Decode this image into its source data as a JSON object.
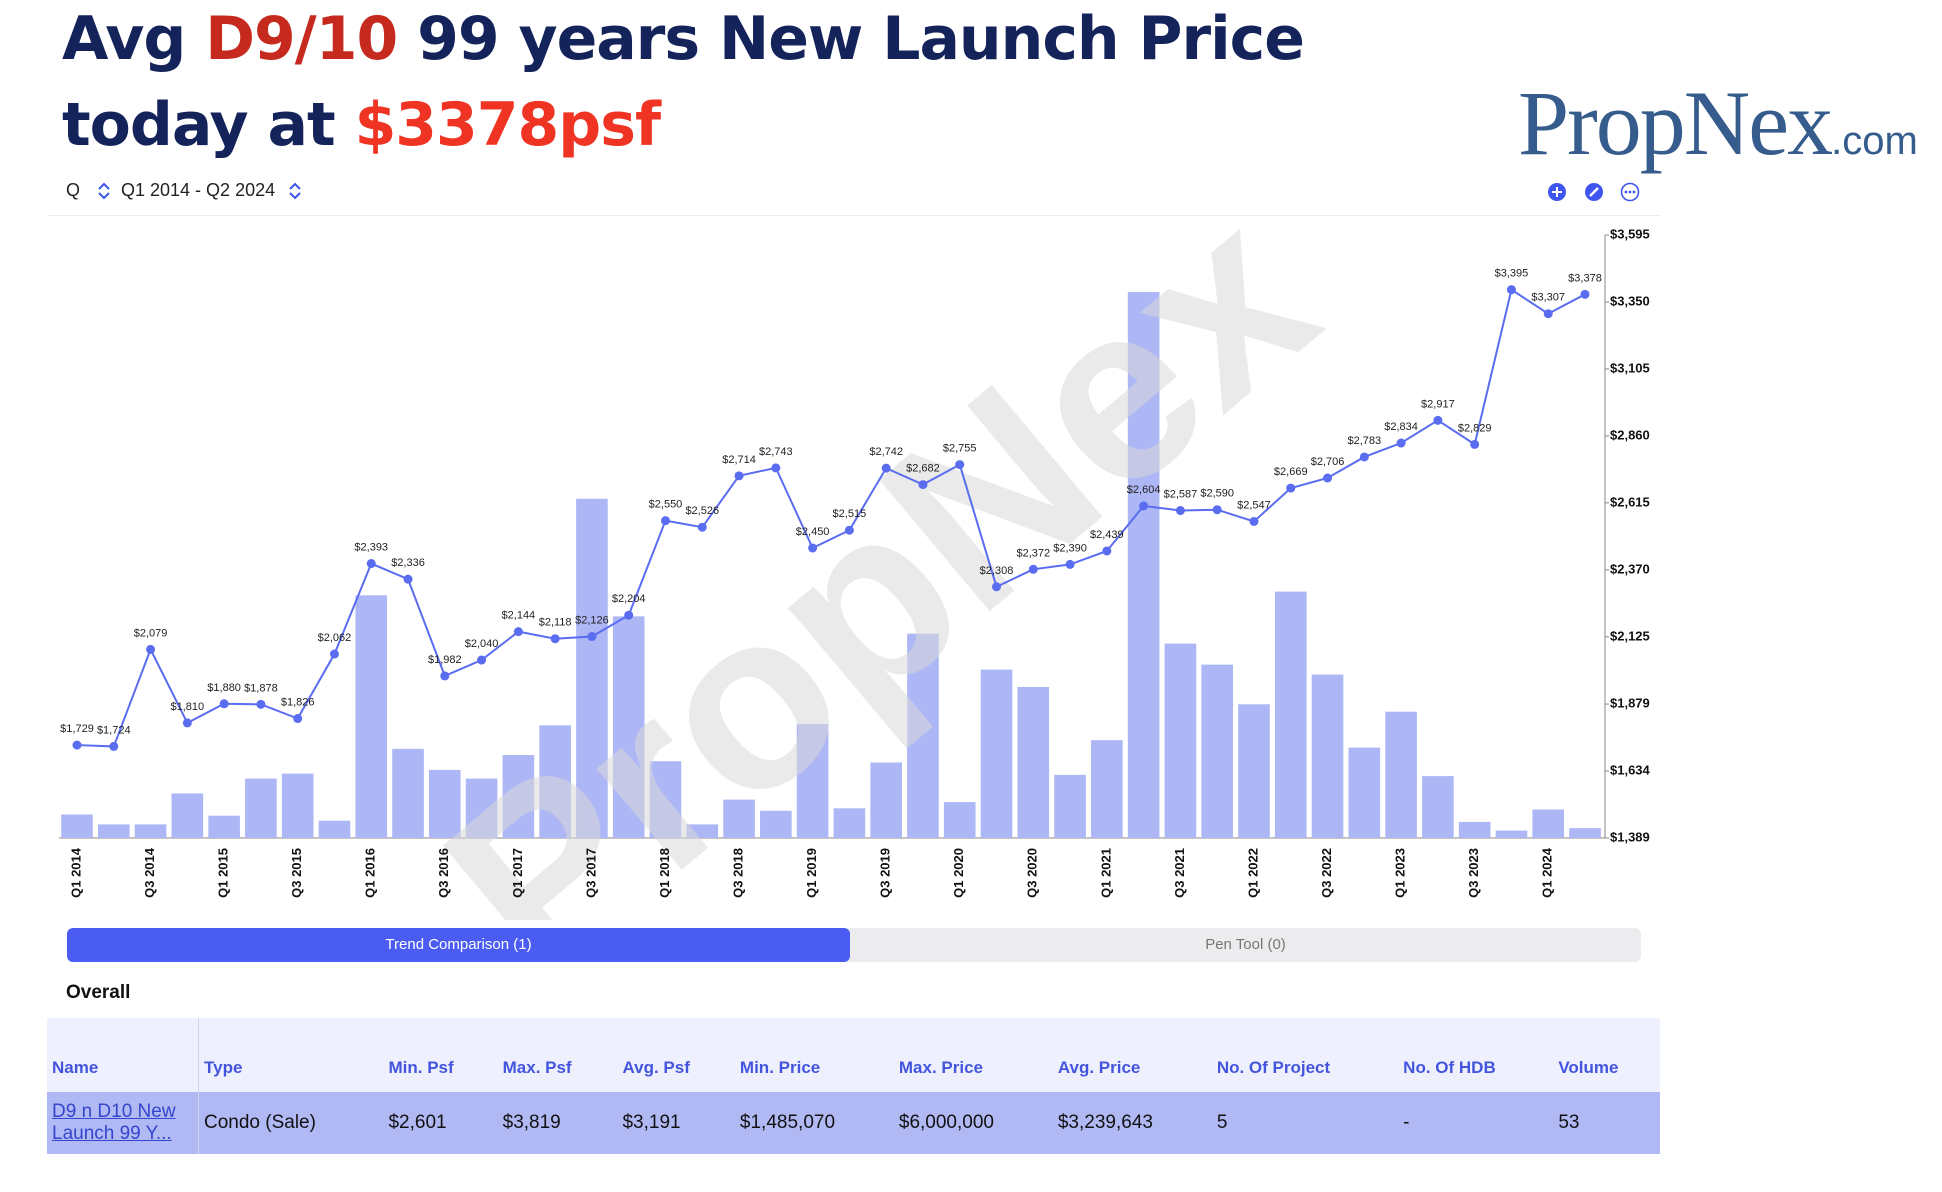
{
  "header": {
    "title_line1": [
      "Avg",
      "D9/10",
      "99 years New Launch Price"
    ],
    "title_line2": [
      "today at",
      "$3378psf"
    ],
    "logo": [
      "PropNex",
      ".com"
    ]
  },
  "toolbar": {
    "period": "Q",
    "range": "Q1 2014 - Q2 2024"
  },
  "chart_data": {
    "type": "combo",
    "watermark": "PropNex",
    "categories": [
      "Q1 2014",
      null,
      "Q3 2014",
      null,
      "Q1 2015",
      null,
      "Q3 2015",
      null,
      "Q1 2016",
      null,
      "Q3 2016",
      null,
      "Q1 2017",
      null,
      "Q3 2017",
      null,
      "Q1 2018",
      null,
      "Q3 2018",
      null,
      "Q1 2019",
      null,
      "Q3 2019",
      null,
      "Q1 2020",
      null,
      "Q3 2020",
      null,
      "Q1 2021",
      null,
      "Q3 2021",
      null,
      "Q1 2022",
      null,
      "Q3 2022",
      null,
      "Q1 2023",
      null,
      "Q3 2023",
      null,
      "Q1 2024",
      null
    ],
    "series": [
      {
        "type": "bar",
        "axis": "y2",
        "color": "#aeb7f6",
        "values": [
          19,
          11,
          11,
          36,
          18,
          48,
          52,
          14,
          196,
          72,
          55,
          48,
          67,
          91,
          274,
          179,
          62,
          11,
          31,
          22,
          92,
          24,
          61,
          165,
          29,
          136,
          122,
          51,
          79,
          441,
          157,
          140,
          108,
          199,
          132,
          73,
          102,
          50,
          13,
          6,
          23,
          8
        ]
      },
      {
        "type": "line",
        "color": "#5a6cf0",
        "values": [
          1729,
          1724,
          2079,
          1810,
          1880,
          1878,
          1826,
          2062,
          2393,
          2336,
          1982,
          2040,
          2144,
          2118,
          2126,
          2204,
          2550,
          2526,
          2714,
          2743,
          2450,
          2515,
          2742,
          2682,
          2755,
          2308,
          2372,
          2390,
          2439,
          2604,
          2587,
          2590,
          2547,
          2669,
          2706,
          2783,
          2834,
          2917,
          2829,
          3395,
          3307,
          3378
        ],
        "value_labels": [
          "$1,729",
          "$1,724",
          "$2,079",
          "$1,810",
          "$1,880",
          "$1,878",
          "$1,826",
          "$2,062",
          "$2,393",
          "$2,336",
          "$1,982",
          "$2,040",
          "$2,144",
          "$2,118",
          "$2,126",
          "$2,204",
          "$2,550",
          "$2,526",
          "$2,714",
          "$2,743",
          "$2,450",
          "$2,515",
          "$2,742",
          "$2,682",
          "$2,755",
          "$2,308",
          "$2,372",
          "$2,390",
          "$2,439",
          "$2,604",
          "$2,587",
          "$2,590",
          "$2,547",
          "$2,669",
          "$2,706",
          "$2,783",
          "$2,834",
          "$2,917",
          "$2,829",
          "$3,395",
          "$3,307",
          "$3,378"
        ]
      }
    ],
    "ylim": [
      1389,
      3595
    ],
    "yticks": [
      {
        "value": 1389,
        "label": "$1,389"
      },
      {
        "value": 1634,
        "label": "$1,634"
      },
      {
        "value": 1879,
        "label": "$1,879"
      },
      {
        "value": 2125,
        "label": "$2,125"
      },
      {
        "value": 2370,
        "label": "$2,370"
      },
      {
        "value": 2615,
        "label": "$2,615"
      },
      {
        "value": 2860,
        "label": "$2,860"
      },
      {
        "value": 3105,
        "label": "$3,105"
      },
      {
        "value": 3350,
        "label": "$3,350"
      },
      {
        "value": 3595,
        "label": "$3,595"
      }
    ],
    "y2lim": [
      0,
      487
    ],
    "grid": false
  },
  "tabs": [
    "Trend Comparison (1)",
    "Pen Tool (0)"
  ],
  "section": "Overall",
  "table": {
    "header": [
      "Name",
      "Type",
      "Min. Psf",
      "Max. Psf",
      "Avg. Psf",
      "Min. Price",
      "Max. Price",
      "Avg. Price",
      "No. Of Project",
      "No. Of HDB",
      "Volume"
    ],
    "rows": [
      [
        "D9 n D10 New Launch 99 Y...",
        "Condo (Sale)",
        "$2,601",
        "$3,819",
        "$3,191",
        "$1,485,070",
        "$6,000,000",
        "$3,239,643",
        "5",
        "-",
        "53"
      ]
    ]
  }
}
